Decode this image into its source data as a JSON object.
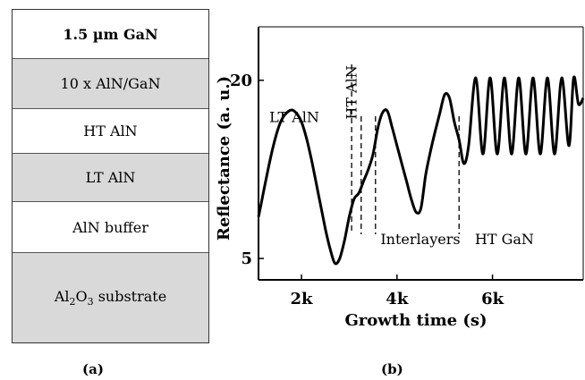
{
  "panel_a": {
    "label": "(a)",
    "layers": [
      {
        "name": "gan-layer",
        "label": "1.5 µm GaN",
        "shade": "white",
        "bold": true
      },
      {
        "name": "superlattice-layer",
        "label": "10 x AlN/GaN",
        "shade": "gray",
        "bold": false
      },
      {
        "name": "ht-aln-layer",
        "label": "HT AlN",
        "shade": "white",
        "bold": false
      },
      {
        "name": "lt-aln-layer",
        "label": "LT AlN",
        "shade": "gray",
        "bold": false
      },
      {
        "name": "aln-buffer-layer",
        "label": "AlN buffer",
        "shade": "white",
        "bold": false
      },
      {
        "name": "substrate-layer",
        "label": "Al2O3 substrate",
        "shade": "gray",
        "bold": false
      }
    ]
  },
  "panel_b": {
    "label": "(b)"
  },
  "chart_data": {
    "type": "line",
    "xlabel": "Growth time (s)",
    "ylabel": "Reflectance (a. u.)",
    "x_ticks": [
      2000,
      4000,
      6000
    ],
    "x_tick_labels": [
      "2k",
      "4k",
      "6k"
    ],
    "y_ticks": [
      5,
      20
    ],
    "y_tick_labels": [
      "5",
      "20"
    ],
    "xlim": [
      1100,
      7900
    ],
    "ylim": [
      3.2,
      24.5
    ],
    "grid": false,
    "annotations": [
      {
        "name": "lt-aln-annotation",
        "text": "LT AlN",
        "x": 1850,
        "y": 16.5,
        "rotate": false
      },
      {
        "name": "ht-aln-annotation",
        "text": "HT AlN",
        "x": 3150,
        "y": 16.7,
        "rotate": true
      },
      {
        "name": "interlayers-annotation",
        "text": "Interlayers",
        "x": 4490,
        "y": 6.2,
        "rotate": false
      },
      {
        "name": "ht-gan-annotation",
        "text": "HT GaN",
        "x": 6250,
        "y": 6.2,
        "rotate": false
      }
    ],
    "dividers": [
      3050,
      3250,
      3550,
      5300
    ],
    "series": [
      {
        "x": [
          1100,
          1200,
          1300,
          1400,
          1500,
          1600,
          1700,
          1800,
          1900,
          2000,
          2100,
          2200,
          2300,
          2400,
          2500,
          2600,
          2700,
          2800,
          2900,
          3000,
          3100,
          3200,
          3300,
          3400,
          3500,
          3600,
          3700,
          3800,
          3900,
          4000,
          4100,
          4200,
          4300,
          4400,
          4500,
          4600,
          4700,
          4800,
          4900,
          5000,
          5100,
          5200,
          5300,
          5400,
          5500,
          5650,
          5800,
          5950,
          6100,
          6250,
          6400,
          6550,
          6700,
          6850,
          7000,
          7150,
          7300,
          7450,
          7600,
          7700,
          7800,
          7900
        ],
        "y": [
          8.5,
          10.5,
          12.5,
          14.3,
          15.8,
          16.8,
          17.3,
          17.5,
          17.2,
          16.5,
          15.2,
          13.5,
          11.5,
          9.5,
          7.5,
          5.8,
          4.6,
          5,
          6.5,
          8.5,
          10,
          10.5,
          11.5,
          12.5,
          13.8,
          16,
          17.3,
          17.4,
          16,
          14.5,
          13,
          11.5,
          10,
          8.9,
          9.2,
          12,
          14,
          15.7,
          17.3,
          18.8,
          18.5,
          16.5,
          15,
          13,
          14.5,
          20.2,
          13.8,
          20.2,
          13.8,
          20.2,
          13.8,
          20.2,
          13.8,
          20.2,
          13.8,
          20.2,
          13.8,
          20.2,
          14.5,
          20.2,
          18,
          18.5
        ]
      }
    ]
  }
}
